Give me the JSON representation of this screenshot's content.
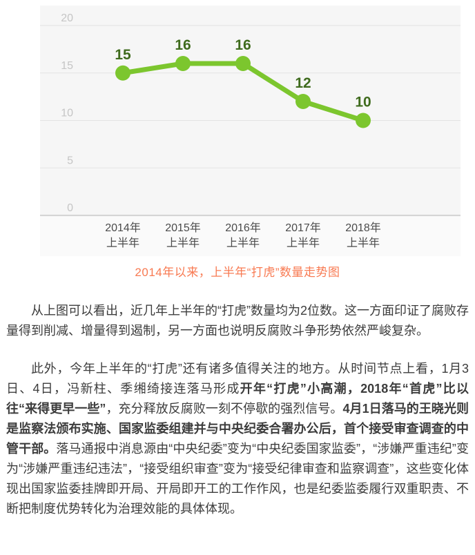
{
  "chart_data": {
    "type": "line",
    "caption": "2014年以来，上半年“打虎”数量走势图",
    "categories": [
      [
        "2014年",
        "上半年"
      ],
      [
        "2015年",
        "上半年"
      ],
      [
        "2016年",
        "上半年"
      ],
      [
        "2017年",
        "上半年"
      ],
      [
        "2018年",
        "上半年"
      ]
    ],
    "values": [
      15,
      16,
      16,
      12,
      10
    ],
    "yticks": [
      20,
      15,
      10,
      5,
      0
    ],
    "ylim": [
      0,
      20
    ],
    "grid": true,
    "legend": "none",
    "colors": {
      "line": "#7cc62e",
      "point": "#7cc62e",
      "value_label": "#3f6b1d",
      "y_tick": "#c5c5c5",
      "x_tick": "#4a4a4a",
      "grid_line": "#e3e3e3",
      "axis_line": "#d4d4d4",
      "panel_bg": "#f6f6f6",
      "label_band_bg": "#fafafa",
      "caption": "#f87a52"
    }
  },
  "article": {
    "text_color": "#3c3c3c",
    "paragraphs": [
      {
        "segments": [
          {
            "text": "从上图可以看出，近几年上半年的“打虎”数量均为2位数。这一方面印证了腐败存量得到削减、增量得到遏制，另一方面也说明反腐败斗争形势依然严峻复杂。",
            "bold": false
          }
        ]
      },
      {
        "segments": [
          {
            "text": "此外，今年上半年的“打虎”还有诸多值得关注的地方。从时间节点上看，1月3日、4日，冯新柱、季缃绮接连落马形成",
            "bold": false
          },
          {
            "text": "开年“打虎”小高潮，2018年“首虎”比以往“来得更早一些”",
            "bold": true
          },
          {
            "text": "，充分释放反腐败一刻不停歇的强烈信号。",
            "bold": false
          },
          {
            "text": "4月1日落马的王晓光则是监察法颁布实施、国家监委组建并与中央纪委合署办公后，首个接受审查调查的中管干部。",
            "bold": true
          },
          {
            "text": "落马通报中消息源由“中央纪委”变为“中央纪委国家监委”，“涉嫌严重违纪”变为“涉嫌严重违纪违法”，“接受组织审查”变为“接受纪律审查和监察调查”，这些变化体现出国家监委挂牌即开局、开局即开工的工作作风，也是纪委监委履行双重职责、不断把制度优势转化为治理效能的具体体现。",
            "bold": false
          }
        ]
      }
    ]
  }
}
